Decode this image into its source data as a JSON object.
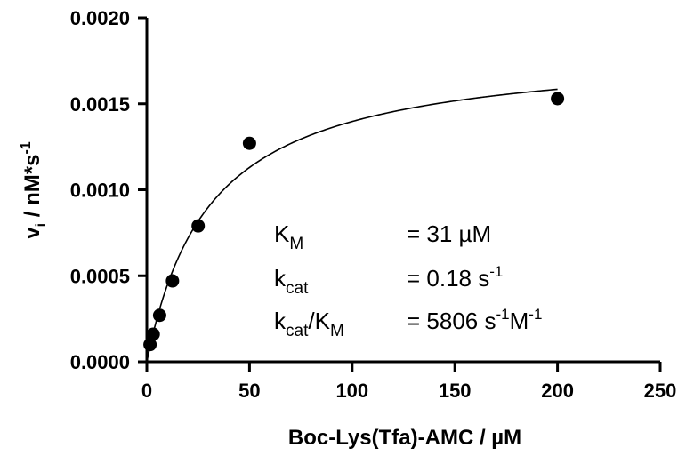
{
  "chart_data": {
    "type": "scatter",
    "xlabel": "Boc-Lys(Tfa)-AMC / µM",
    "ylabel": {
      "v": "v",
      "sub": "i",
      "mid": " / nM*s",
      "sup": "-1"
    },
    "xlim": [
      0,
      250
    ],
    "ylim": [
      0,
      0.002
    ],
    "xticks": [
      0,
      50,
      100,
      150,
      200,
      250
    ],
    "xtick_labels": [
      "0",
      "50",
      "100",
      "150",
      "200",
      "250"
    ],
    "yticks": [
      0,
      0.0005,
      0.001,
      0.0015,
      0.002
    ],
    "ytick_labels": [
      "0.0000",
      "0.0005",
      "0.0010",
      "0.0015",
      "0.0020"
    ],
    "grid": false,
    "series": [
      {
        "x": [
          1.56,
          3.13,
          6.25,
          12.5,
          25,
          50,
          200
        ],
        "y": [
          0.0001,
          0.00016,
          0.00027,
          0.00047,
          0.00079,
          0.00127,
          0.00153
        ]
      }
    ],
    "fit": {
      "model": "michaelis-menten",
      "vmax": 0.00183,
      "km": 31,
      "x_range": [
        0,
        200
      ]
    },
    "annotations": [
      {
        "label": "K",
        "label_sub": "M",
        "value": "= 31 µM",
        "value_sup": "",
        "value_tail": "",
        "value_tail_sup": ""
      },
      {
        "label": "k",
        "label_sub": "cat",
        "value": "= 0.18 s",
        "value_sup": "-1",
        "value_tail": "",
        "value_tail_sup": ""
      },
      {
        "label": "k",
        "label_sub": "cat",
        "label2": "/K",
        "label2_sub": "M",
        "value": "= 5806 s",
        "value_sup": "-1",
        "value_tail": "M",
        "value_tail_sup": "-1"
      }
    ]
  }
}
